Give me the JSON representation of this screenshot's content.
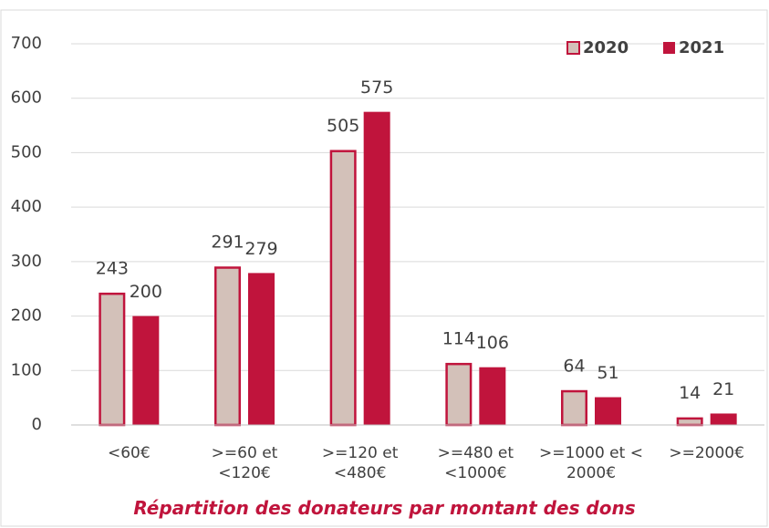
{
  "chart_data": {
    "type": "bar",
    "title": "Répartition des donateurs par montant des dons",
    "categories": [
      "<60€",
      ">=60 et <120€",
      ">=120 et <480€",
      ">=480 et <1000€",
      ">=1000 et < 2000€",
      ">=2000€"
    ],
    "series": [
      {
        "name": "2020",
        "color": "#d3c1b9",
        "values": [
          243,
          291,
          505,
          114,
          64,
          14
        ]
      },
      {
        "name": "2021",
        "color": "#c0143c",
        "values": [
          200,
          279,
          575,
          106,
          51,
          21
        ]
      }
    ],
    "ylim": [
      0,
      700
    ],
    "yticks": [
      0,
      100,
      200,
      300,
      400,
      500,
      600,
      700
    ],
    "grid": true,
    "legend": "top-right"
  }
}
